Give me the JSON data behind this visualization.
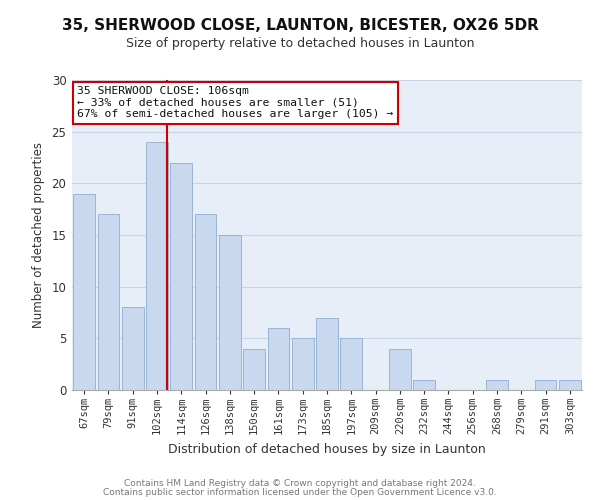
{
  "title1": "35, SHERWOOD CLOSE, LAUNTON, BICESTER, OX26 5DR",
  "title2": "Size of property relative to detached houses in Launton",
  "xlabel": "Distribution of detached houses by size in Launton",
  "ylabel": "Number of detached properties",
  "bar_labels": [
    "67sqm",
    "79sqm",
    "91sqm",
    "102sqm",
    "114sqm",
    "126sqm",
    "138sqm",
    "150sqm",
    "161sqm",
    "173sqm",
    "185sqm",
    "197sqm",
    "209sqm",
    "220sqm",
    "232sqm",
    "244sqm",
    "256sqm",
    "268sqm",
    "279sqm",
    "291sqm",
    "303sqm"
  ],
  "bar_values": [
    19,
    17,
    8,
    24,
    22,
    17,
    15,
    4,
    6,
    5,
    7,
    5,
    0,
    4,
    1,
    0,
    0,
    1,
    0,
    1,
    1
  ],
  "bar_color": "#c8d8ee",
  "bar_edge_color": "#9ab4d4",
  "grid_color": "#c8d4e8",
  "bg_color": "#e8eef8",
  "vline_color": "#cc0000",
  "annotation_line1": "35 SHERWOOD CLOSE: 106sqm",
  "annotation_line2": "← 33% of detached houses are smaller (51)",
  "annotation_line3": "67% of semi-detached houses are larger (105) →",
  "annotation_box_color": "#cc0000",
  "footer1": "Contains HM Land Registry data © Crown copyright and database right 2024.",
  "footer2": "Contains public sector information licensed under the Open Government Licence v3.0.",
  "ylim": [
    0,
    30
  ],
  "yticks": [
    0,
    5,
    10,
    15,
    20,
    25,
    30
  ],
  "vline_pos": 3.42
}
